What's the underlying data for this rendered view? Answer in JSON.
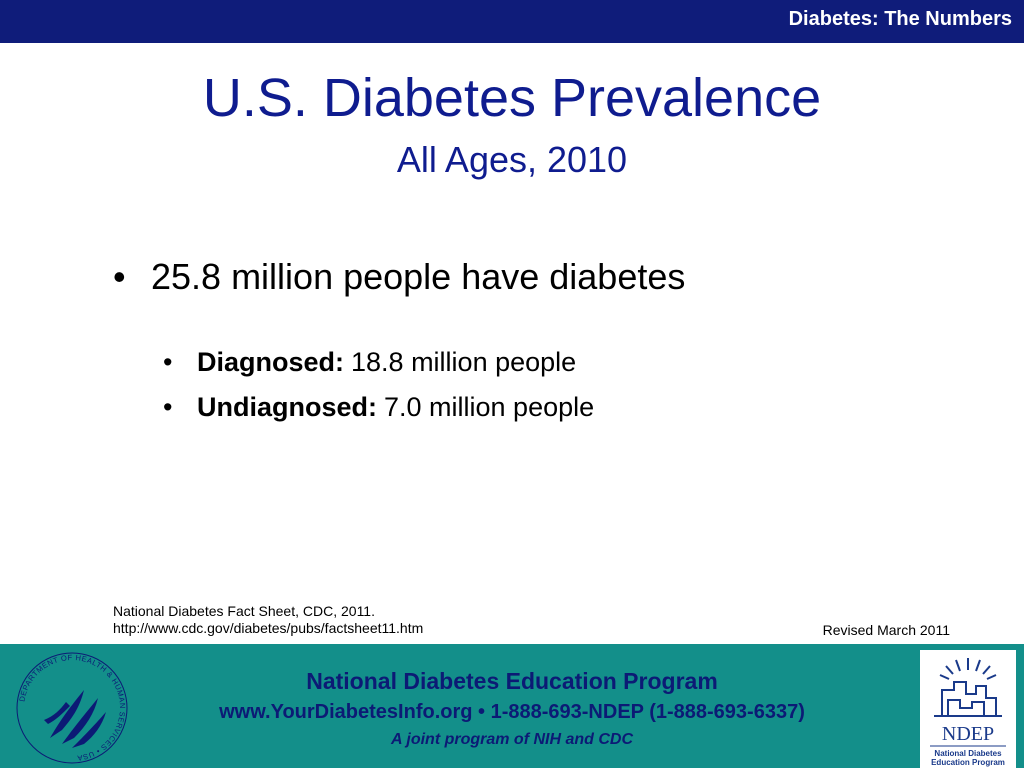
{
  "header": {
    "bar_title": "Diabetes: The Numbers"
  },
  "slide": {
    "title": "U.S. Diabetes Prevalence",
    "subtitle": "All Ages, 2010",
    "bullets": [
      {
        "text": "25.8 million people have diabetes",
        "sub": [
          {
            "label": "Diagnosed:",
            "value": "18.8 million people"
          },
          {
            "label": "Undiagnosed:",
            "value": "7.0 million people"
          }
        ]
      }
    ],
    "source_line1": "National Diabetes Fact Sheet, CDC, 2011.",
    "source_line2": "http://www.cdc.gov/diabetes/pubs/factsheet11.htm",
    "revised": "Revised March 2011"
  },
  "footer": {
    "program": "National Diabetes Education Program",
    "contact": "www.YourDiabetesInfo.org • 1-888-693-NDEP (1-888-693-6337)",
    "tagline": "A joint program of NIH and CDC",
    "seal_text": "DEPARTMENT OF HEALTH & HUMAN SERVICES • USA",
    "logo_name": "NDEP",
    "logo_caption_line1": "National Diabetes",
    "logo_caption_line2": "Education Program"
  },
  "colors": {
    "top_bar": "#0f1c7a",
    "title": "#0f1c8f",
    "footer_bg": "#138f8a",
    "footer_text": "#0c1a75"
  },
  "icons": [
    "hhs-seal-icon",
    "ndep-logo-icon"
  ]
}
